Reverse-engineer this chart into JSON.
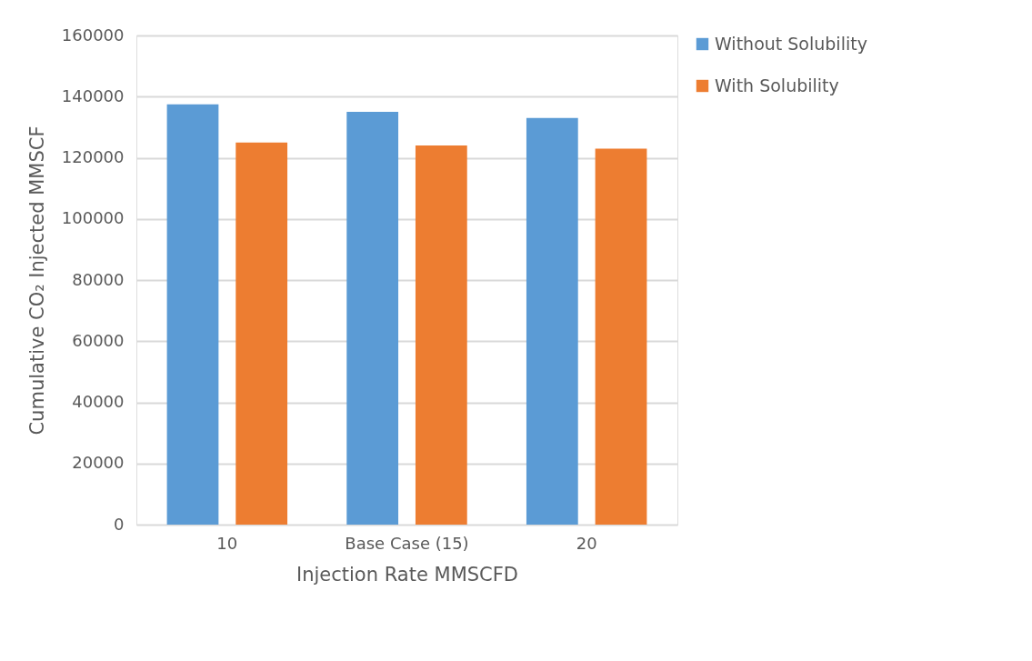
{
  "chart_data": {
    "type": "bar",
    "xlabel": "Injection Rate MMSCFD",
    "ylabel": "Cumulative CO₂ Injected MMSCF",
    "categories": [
      "10",
      "Base Case (15)",
      "20"
    ],
    "series": [
      {
        "name": "Without Solubility",
        "color": "#5b9bd5",
        "values": [
          137500,
          135000,
          133000
        ]
      },
      {
        "name": "With Solubility",
        "color": "#ed7d31",
        "values": [
          125000,
          124000,
          123000
        ]
      }
    ],
    "ylim": [
      0,
      160000
    ],
    "yticks": [
      0,
      20000,
      40000,
      60000,
      80000,
      100000,
      120000,
      140000,
      160000
    ],
    "grid": "y",
    "legend": "right"
  }
}
